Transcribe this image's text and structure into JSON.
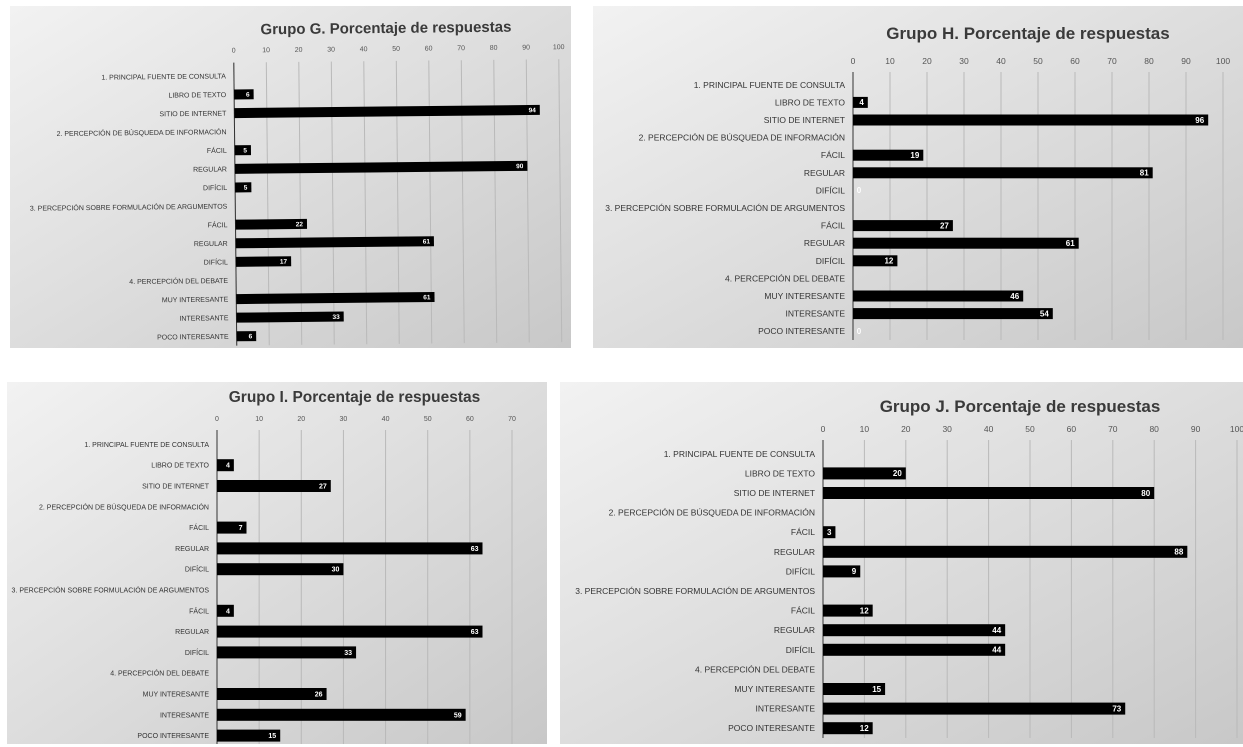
{
  "chart_data": [
    {
      "type": "bar",
      "title": "Grupo G. Porcentaje de respuestas",
      "xlim": [
        0,
        100
      ],
      "ticks": [
        0,
        10,
        20,
        30,
        40,
        50,
        60,
        70,
        80,
        90,
        100
      ],
      "grid": true,
      "categories": [
        "1. PRINCIPAL FUENTE DE CONSULTA",
        "LIBRO DE TEXTO",
        "SITIO DE INTERNET",
        "2. PERCEPCIÓN DE BÚSQUEDA DE INFORMACIÓN",
        "FÁCIL",
        "REGULAR",
        "DIFÍCIL",
        "3. PERCEPCIÓN SOBRE FORMULACIÓN DE ARGUMENTOS",
        "FÁCIL",
        "REGULAR",
        "DIFÍCIL",
        "4. PERCEPCIÓN DEL DEBATE",
        "MUY INTERESANTE",
        "INTERESANTE",
        "POCO INTERESANTE"
      ],
      "values": [
        null,
        6,
        94,
        null,
        5,
        90,
        5,
        null,
        22,
        61,
        17,
        null,
        61,
        33,
        6
      ]
    },
    {
      "type": "bar",
      "title": "Grupo H. Porcentaje de respuestas",
      "xlim": [
        0,
        100
      ],
      "ticks": [
        0,
        10,
        20,
        30,
        40,
        50,
        60,
        70,
        80,
        90,
        100
      ],
      "grid": true,
      "categories": [
        "1. PRINCIPAL FUENTE DE CONSULTA",
        "LIBRO DE TEXTO",
        "SITIO DE INTERNET",
        "2. PERCEPCIÓN DE BÚSQUEDA DE INFORMACIÓN",
        "FÁCIL",
        "REGULAR",
        "DIFÍCIL",
        "3. PERCEPCIÓN SOBRE FORMULACIÓN DE ARGUMENTOS",
        "FÁCIL",
        "REGULAR",
        "DIFÍCIL",
        "4. PERCEPCIÓN DEL DEBATE",
        "MUY INTERESANTE",
        "INTERESANTE",
        "POCO INTERESANTE"
      ],
      "values": [
        null,
        4,
        96,
        null,
        19,
        81,
        0,
        null,
        27,
        61,
        12,
        null,
        46,
        54,
        0
      ]
    },
    {
      "type": "bar",
      "title": "Grupo I. Porcentaje de respuestas",
      "xlim": [
        0,
        70
      ],
      "ticks": [
        0,
        10,
        20,
        30,
        40,
        50,
        60,
        70
      ],
      "grid": true,
      "categories": [
        "1. PRINCIPAL FUENTE DE CONSULTA",
        "LIBRO DE TEXTO",
        "SITIO DE INTERNET",
        "2. PERCEPCIÓN DE BÚSQUEDA DE INFORMACIÓN",
        "FÁCIL",
        "REGULAR",
        "DIFÍCIL",
        "3. PERCEPCIÓN SOBRE FORMULACIÓN DE ARGUMENTOS",
        "FÁCIL",
        "REGULAR",
        "DIFÍCIL",
        "4. PERCEPCIÓN DEL DEBATE",
        "MUY INTERESANTE",
        "INTERESANTE",
        "POCO INTERESANTE"
      ],
      "values": [
        null,
        4,
        27,
        null,
        7,
        63,
        30,
        null,
        4,
        63,
        33,
        null,
        26,
        59,
        15
      ]
    },
    {
      "type": "bar",
      "title": "Grupo J. Porcentaje de respuestas",
      "xlim": [
        0,
        100
      ],
      "ticks": [
        0,
        10,
        20,
        30,
        40,
        50,
        60,
        70,
        80,
        90,
        100
      ],
      "grid": true,
      "categories": [
        "1. PRINCIPAL FUENTE DE CONSULTA",
        "LIBRO DE TEXTO",
        "SITIO DE INTERNET",
        "2. PERCEPCIÓN DE BÚSQUEDA DE INFORMACIÓN",
        "FÁCIL",
        "REGULAR",
        "DIFÍCIL",
        "3. PERCEPCIÓN SOBRE FORMULACIÓN DE ARGUMENTOS",
        "FÁCIL",
        "REGULAR",
        "DIFÍCIL",
        "4. PERCEPCIÓN DEL DEBATE",
        "MUY INTERESANTE",
        "INTERESANTE",
        "POCO INTERESANTE"
      ],
      "values": [
        null,
        20,
        80,
        null,
        3,
        88,
        9,
        null,
        12,
        44,
        44,
        null,
        15,
        73,
        12
      ]
    }
  ],
  "colors": {
    "bar": "#000000",
    "bar_label": "#ffffff",
    "grid": "#b9b9b9",
    "background_light": "#f2f2f2",
    "background_dark": "#c8c8c8"
  }
}
